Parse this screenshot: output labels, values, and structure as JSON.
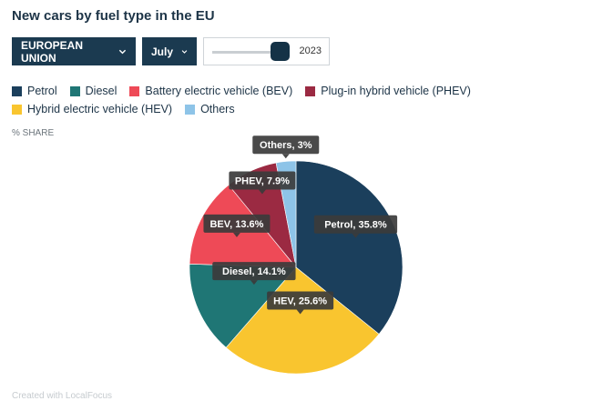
{
  "title": "New cars by fuel type in the EU",
  "controls": {
    "region": "EUROPEAN UNION",
    "month": "July",
    "year": "2023",
    "slider_position": 0.9
  },
  "legend": [
    {
      "label": "Petrol",
      "color": "#1b3f5c"
    },
    {
      "label": "Diesel",
      "color": "#1f7675"
    },
    {
      "label": "Battery electric vehicle (BEV)",
      "color": "#ee4a57"
    },
    {
      "label": "Plug-in hybrid vehicle (PHEV)",
      "color": "#9b2a42"
    },
    {
      "label": "Hybrid electric vehicle (HEV)",
      "color": "#f9c52f"
    },
    {
      "label": "Others",
      "color": "#8ec4e8"
    }
  ],
  "share_label": "% SHARE",
  "credit": "Created with LocalFocus",
  "chart_data": {
    "type": "pie",
    "title": "New cars by fuel type in the EU",
    "unit": "% SHARE",
    "slices": [
      {
        "name": "Petrol",
        "value": 35.8,
        "label": "Petrol, 35.8%",
        "color": "#1b3f5c"
      },
      {
        "name": "HEV",
        "value": 25.6,
        "label": "HEV, 25.6%",
        "color": "#f9c52f"
      },
      {
        "name": "Diesel",
        "value": 14.1,
        "label": "Diesel, 14.1%",
        "color": "#1f7675"
      },
      {
        "name": "BEV",
        "value": 13.6,
        "label": "BEV, 13.6%",
        "color": "#ee4a57"
      },
      {
        "name": "PHEV",
        "value": 7.9,
        "label": "PHEV, 7.9%",
        "color": "#9b2a42"
      },
      {
        "name": "Others",
        "value": 3,
        "label": "Others, 3%",
        "color": "#8ec4e8"
      }
    ]
  }
}
